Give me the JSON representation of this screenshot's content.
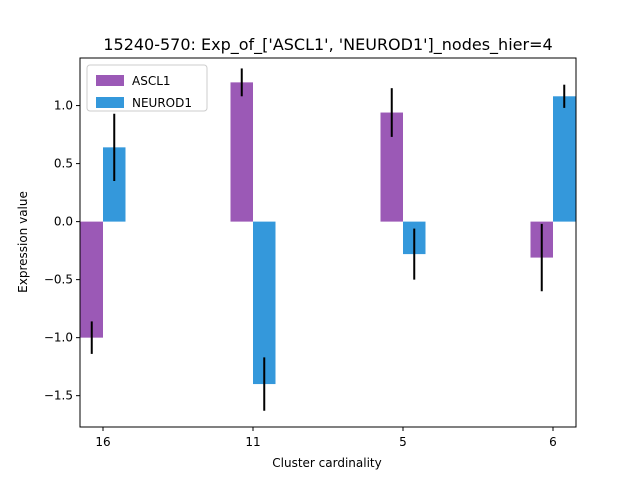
{
  "chart_data": {
    "type": "bar",
    "title": "15240-570: Exp_of_['ASCL1', 'NEUROD1']_nodes_hier=4",
    "xlabel": "Cluster cardinality",
    "ylabel": "Expression value",
    "categories": [
      "16",
      "11",
      "5",
      "6"
    ],
    "series": [
      {
        "name": "ASCL1",
        "color": "#9b59b6",
        "values": [
          -1.0,
          1.2,
          0.94,
          -0.31
        ],
        "errors": [
          0.14,
          0.12,
          0.21,
          0.29
        ]
      },
      {
        "name": "NEUROD1",
        "color": "#3498db",
        "values": [
          0.64,
          -1.4,
          -0.28,
          1.08
        ],
        "errors": [
          0.29,
          0.23,
          0.22,
          0.1
        ]
      }
    ],
    "ylim": [
      -1.77,
      1.41
    ],
    "yticks": [
      -1.5,
      -1.0,
      -0.5,
      0.0,
      0.5,
      1.0
    ],
    "ytick_labels": [
      "−1.5",
      "−1.0",
      "−0.5",
      "0.0",
      "0.5",
      "1.0"
    ],
    "grid": false,
    "legend_position": "top-left",
    "error_bar_color": "#000000"
  }
}
